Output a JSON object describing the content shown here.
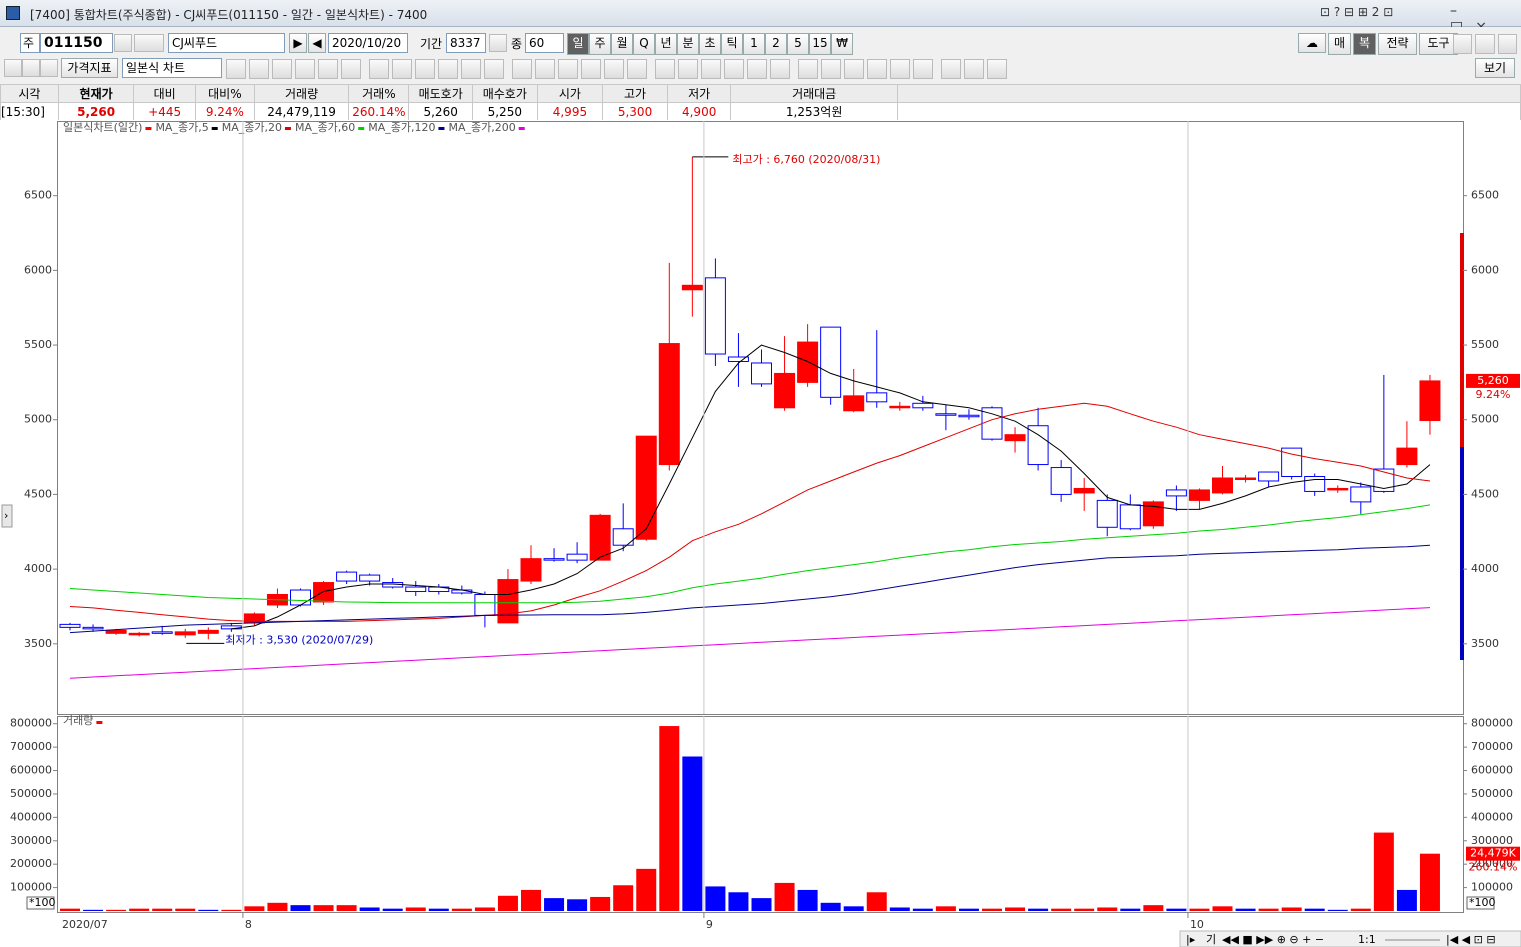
{
  "window": {
    "title": "[7400] 통합차트(주식종합) - CJ씨푸드(011150 - 일간 - 일본식차트) - 7400"
  },
  "toolbar": {
    "market": "주",
    "code": "011150",
    "name": "CJ씨푸드",
    "date": "2020/10/20",
    "period_label": "기간",
    "period": "8337",
    "count_label": "종",
    "count": "60",
    "intervals": [
      "일",
      "주",
      "월",
      "Q",
      "년",
      "분",
      "초",
      "틱",
      "1",
      "2",
      "5",
      "15",
      "₩"
    ],
    "right_buttons": [
      "매",
      "복",
      "전략",
      "도구"
    ],
    "indicator_button": "가격지표",
    "chart_style": "일본식 차트",
    "view_button": "보기"
  },
  "quote": {
    "headers": [
      "시각",
      "현재가",
      "대비",
      "대비%",
      "거래량",
      "거래%",
      "매도호가",
      "매수호가",
      "시가",
      "고가",
      "저가",
      "거래대금"
    ],
    "values": [
      "[15:30]",
      "5,260",
      "+445",
      "9.24%",
      "24,479,119",
      "260.14%",
      "5,260",
      "5,250",
      "4,995",
      "5,300",
      "4,900",
      "1,253억원"
    ]
  },
  "chart_data": [
    {
      "type": "candlestick",
      "title": "일본식차트(일간)",
      "color_up": "#ff0000",
      "color_down": "#0000ff",
      "open": [
        3630,
        3610,
        3570,
        3560,
        3580,
        3560,
        3570,
        3620,
        3640,
        3760,
        3860,
        3780,
        3980,
        3960,
        3910,
        3880,
        3880,
        3860,
        3830,
        3640,
        3920,
        4070,
        4100,
        4060,
        4270,
        4200,
        4700,
        5870,
        5950,
        5420,
        5380,
        5080,
        5250,
        5620,
        5060,
        5180,
        5080,
        5110,
        5040,
        5030,
        5080,
        4860,
        4960,
        4680,
        4510,
        4460,
        4430,
        4290,
        4530,
        4460,
        4510,
        4600,
        4650,
        4810,
        4620,
        4530,
        4550,
        4670,
        4700,
        4995
      ],
      "high": [
        3640,
        3630,
        3600,
        3580,
        3620,
        3600,
        3610,
        3640,
        3710,
        3870,
        3870,
        3920,
        3990,
        3970,
        3940,
        3920,
        3900,
        3890,
        3850,
        4000,
        4160,
        4140,
        4180,
        4370,
        4440,
        4890,
        6050,
        6760,
        6080,
        5580,
        5470,
        5560,
        5640,
        5620,
        5340,
        5600,
        5120,
        5160,
        5100,
        5070,
        5090,
        4950,
        5080,
        4730,
        4610,
        4500,
        4500,
        4460,
        4560,
        4540,
        4690,
        4630,
        4650,
        4810,
        4640,
        4560,
        4580,
        5300,
        4990,
        5300
      ],
      "low": [
        3590,
        3580,
        3560,
        3550,
        3560,
        3540,
        3530,
        3580,
        3620,
        3740,
        3750,
        3760,
        3900,
        3890,
        3870,
        3820,
        3830,
        3830,
        3610,
        3640,
        3900,
        4050,
        4040,
        4060,
        4120,
        4190,
        4660,
        5690,
        5360,
        5220,
        5220,
        5060,
        5220,
        5100,
        5050,
        5080,
        5060,
        5060,
        4930,
        5000,
        4860,
        4780,
        4660,
        4450,
        4390,
        4220,
        4260,
        4270,
        4390,
        4400,
        4500,
        4580,
        4550,
        4600,
        4490,
        4510,
        4370,
        4510,
        4680,
        4900
      ],
      "close": [
        3610,
        3600,
        3590,
        3570,
        3570,
        3580,
        3590,
        3600,
        3700,
        3830,
        3760,
        3910,
        3920,
        3920,
        3880,
        3850,
        3850,
        3840,
        3690,
        3930,
        4070,
        4060,
        4060,
        4360,
        4160,
        4890,
        5510,
        5900,
        5440,
        5390,
        5240,
        5310,
        5520,
        5150,
        5160,
        5120,
        5090,
        5080,
        5030,
        5020,
        4870,
        4900,
        4700,
        4500,
        4540,
        4280,
        4270,
        4450,
        4490,
        4530,
        4610,
        4610,
        4590,
        4620,
        4520,
        4540,
        4450,
        4520,
        4810,
        5260
      ],
      "series": [
        {
          "name": "MA_종가,5",
          "color": "#000000",
          "values": [
            null,
            null,
            null,
            null,
            null,
            null,
            null,
            3600,
            3620,
            3680,
            3760,
            3850,
            3880,
            3900,
            3900,
            3890,
            3880,
            3860,
            3830,
            3830,
            3860,
            3900,
            3970,
            4080,
            4140,
            4270,
            4570,
            4880,
            5190,
            5380,
            5500,
            5450,
            5390,
            5310,
            5260,
            5220,
            5180,
            5120,
            5100,
            5080,
            5040,
            4990,
            4900,
            4790,
            4640,
            4480,
            4430,
            4420,
            4400,
            4400,
            4440,
            4490,
            4550,
            4580,
            4600,
            4600,
            4570,
            4540,
            4570,
            4700
          ]
        },
        {
          "name": "MA_종가,20",
          "color": "#e00000",
          "values": [
            3750,
            3740,
            3725,
            3710,
            3695,
            3680,
            3665,
            3655,
            3650,
            3650,
            3650,
            3650,
            3650,
            3655,
            3660,
            3665,
            3670,
            3680,
            3690,
            3700,
            3720,
            3760,
            3810,
            3855,
            3920,
            3990,
            4080,
            4190,
            4250,
            4300,
            4370,
            4450,
            4530,
            4590,
            4650,
            4710,
            4760,
            4820,
            4880,
            4940,
            5000,
            5040,
            5070,
            5090,
            5110,
            5090,
            5040,
            4990,
            4950,
            4900,
            4870,
            4840,
            4810,
            4770,
            4740,
            4715,
            4690,
            4650,
            4610,
            4590
          ]
        },
        {
          "name": "MA_종가,60",
          "color": "#00d000",
          "values": [
            3870,
            3860,
            3850,
            3840,
            3830,
            3820,
            3810,
            3805,
            3800,
            3795,
            3790,
            3785,
            3780,
            3778,
            3776,
            3775,
            3775,
            3775,
            3775,
            3775,
            3775,
            3775,
            3778,
            3785,
            3800,
            3815,
            3840,
            3875,
            3900,
            3920,
            3940,
            3965,
            3990,
            4010,
            4030,
            4050,
            4075,
            4095,
            4115,
            4130,
            4150,
            4165,
            4175,
            4185,
            4200,
            4210,
            4220,
            4230,
            4240,
            4255,
            4265,
            4280,
            4295,
            4315,
            4330,
            4345,
            4365,
            4385,
            4405,
            4430
          ]
        },
        {
          "name": "MA_종가,120",
          "color": "#000090",
          "values": [
            3575,
            3585,
            3595,
            3605,
            3615,
            3625,
            3630,
            3635,
            3640,
            3645,
            3650,
            3655,
            3660,
            3665,
            3670,
            3675,
            3680,
            3685,
            3690,
            3692,
            3693,
            3694,
            3695,
            3695,
            3700,
            3710,
            3725,
            3740,
            3750,
            3760,
            3770,
            3785,
            3800,
            3815,
            3835,
            3860,
            3885,
            3910,
            3935,
            3960,
            3985,
            4010,
            4030,
            4045,
            4060,
            4075,
            4080,
            4085,
            4090,
            4100,
            4105,
            4110,
            4115,
            4120,
            4125,
            4130,
            4140,
            4145,
            4150,
            4160
          ]
        },
        {
          "name": "MA_종가,200",
          "color": "#e000e0",
          "values": [
            3270,
            3278,
            3286,
            3294,
            3302,
            3310,
            3318,
            3326,
            3334,
            3342,
            3350,
            3358,
            3366,
            3374,
            3382,
            3390,
            3398,
            3406,
            3414,
            3422,
            3430,
            3438,
            3446,
            3454,
            3462,
            3470,
            3478,
            3486,
            3494,
            3502,
            3510,
            3518,
            3526,
            3534,
            3542,
            3550,
            3558,
            3566,
            3574,
            3582,
            3590,
            3598,
            3606,
            3614,
            3622,
            3630,
            3638,
            3646,
            3654,
            3662,
            3670,
            3678,
            3686,
            3694,
            3702,
            3710,
            3718,
            3726,
            3734,
            3742
          ]
        }
      ],
      "ylim": [
        3030,
        7000
      ],
      "yticks": [
        3500,
        4000,
        4500,
        5000,
        5500,
        6000,
        6500
      ],
      "high_label": "최고가 : 6,760 (2020/08/31)",
      "low_label": "최저가 : 3,530 (2020/07/29)",
      "last_price_label": "5,260",
      "last_change_label": "9.24%"
    },
    {
      "type": "bar",
      "title": "거래량",
      "color_up": "#ff0000",
      "color_down": "#0000ff",
      "categories": [
        "2020/07",
        null,
        null,
        null,
        null,
        null,
        null,
        null,
        "8",
        null,
        null,
        null,
        null,
        null,
        null,
        null,
        null,
        null,
        null,
        null,
        null,
        null,
        null,
        null,
        null,
        null,
        null,
        null,
        "9",
        null,
        null,
        null,
        null,
        null,
        null,
        null,
        null,
        null,
        null,
        null,
        null,
        null,
        null,
        null,
        null,
        null,
        null,
        null,
        null,
        "10",
        null,
        null,
        null,
        null,
        null,
        null,
        null,
        null,
        null,
        null
      ],
      "values": [
        10000,
        5000,
        5000,
        10000,
        10000,
        10000,
        5000,
        5000,
        20000,
        35000,
        25000,
        25000,
        25000,
        15000,
        10000,
        15000,
        10000,
        10000,
        15000,
        65000,
        90000,
        55000,
        50000,
        60000,
        110000,
        180000,
        790000,
        660000,
        105000,
        80000,
        55000,
        120000,
        90000,
        35000,
        20000,
        80000,
        15000,
        10000,
        20000,
        10000,
        10000,
        15000,
        10000,
        10000,
        10000,
        15000,
        10000,
        25000,
        10000,
        10000,
        20000,
        10000,
        10000,
        15000,
        10000,
        5000,
        10000,
        335000,
        90000,
        244791
      ],
      "ylim": [
        0,
        833000
      ],
      "yticks": [
        100000,
        200000,
        300000,
        400000,
        500000,
        600000,
        700000,
        800000
      ],
      "scale_label": "*100",
      "last_value_label": "24,479K",
      "last_ratio_label": "260.14%"
    }
  ],
  "bottom_bar": {
    "buttons": [
      "기",
      "1:1"
    ]
  }
}
